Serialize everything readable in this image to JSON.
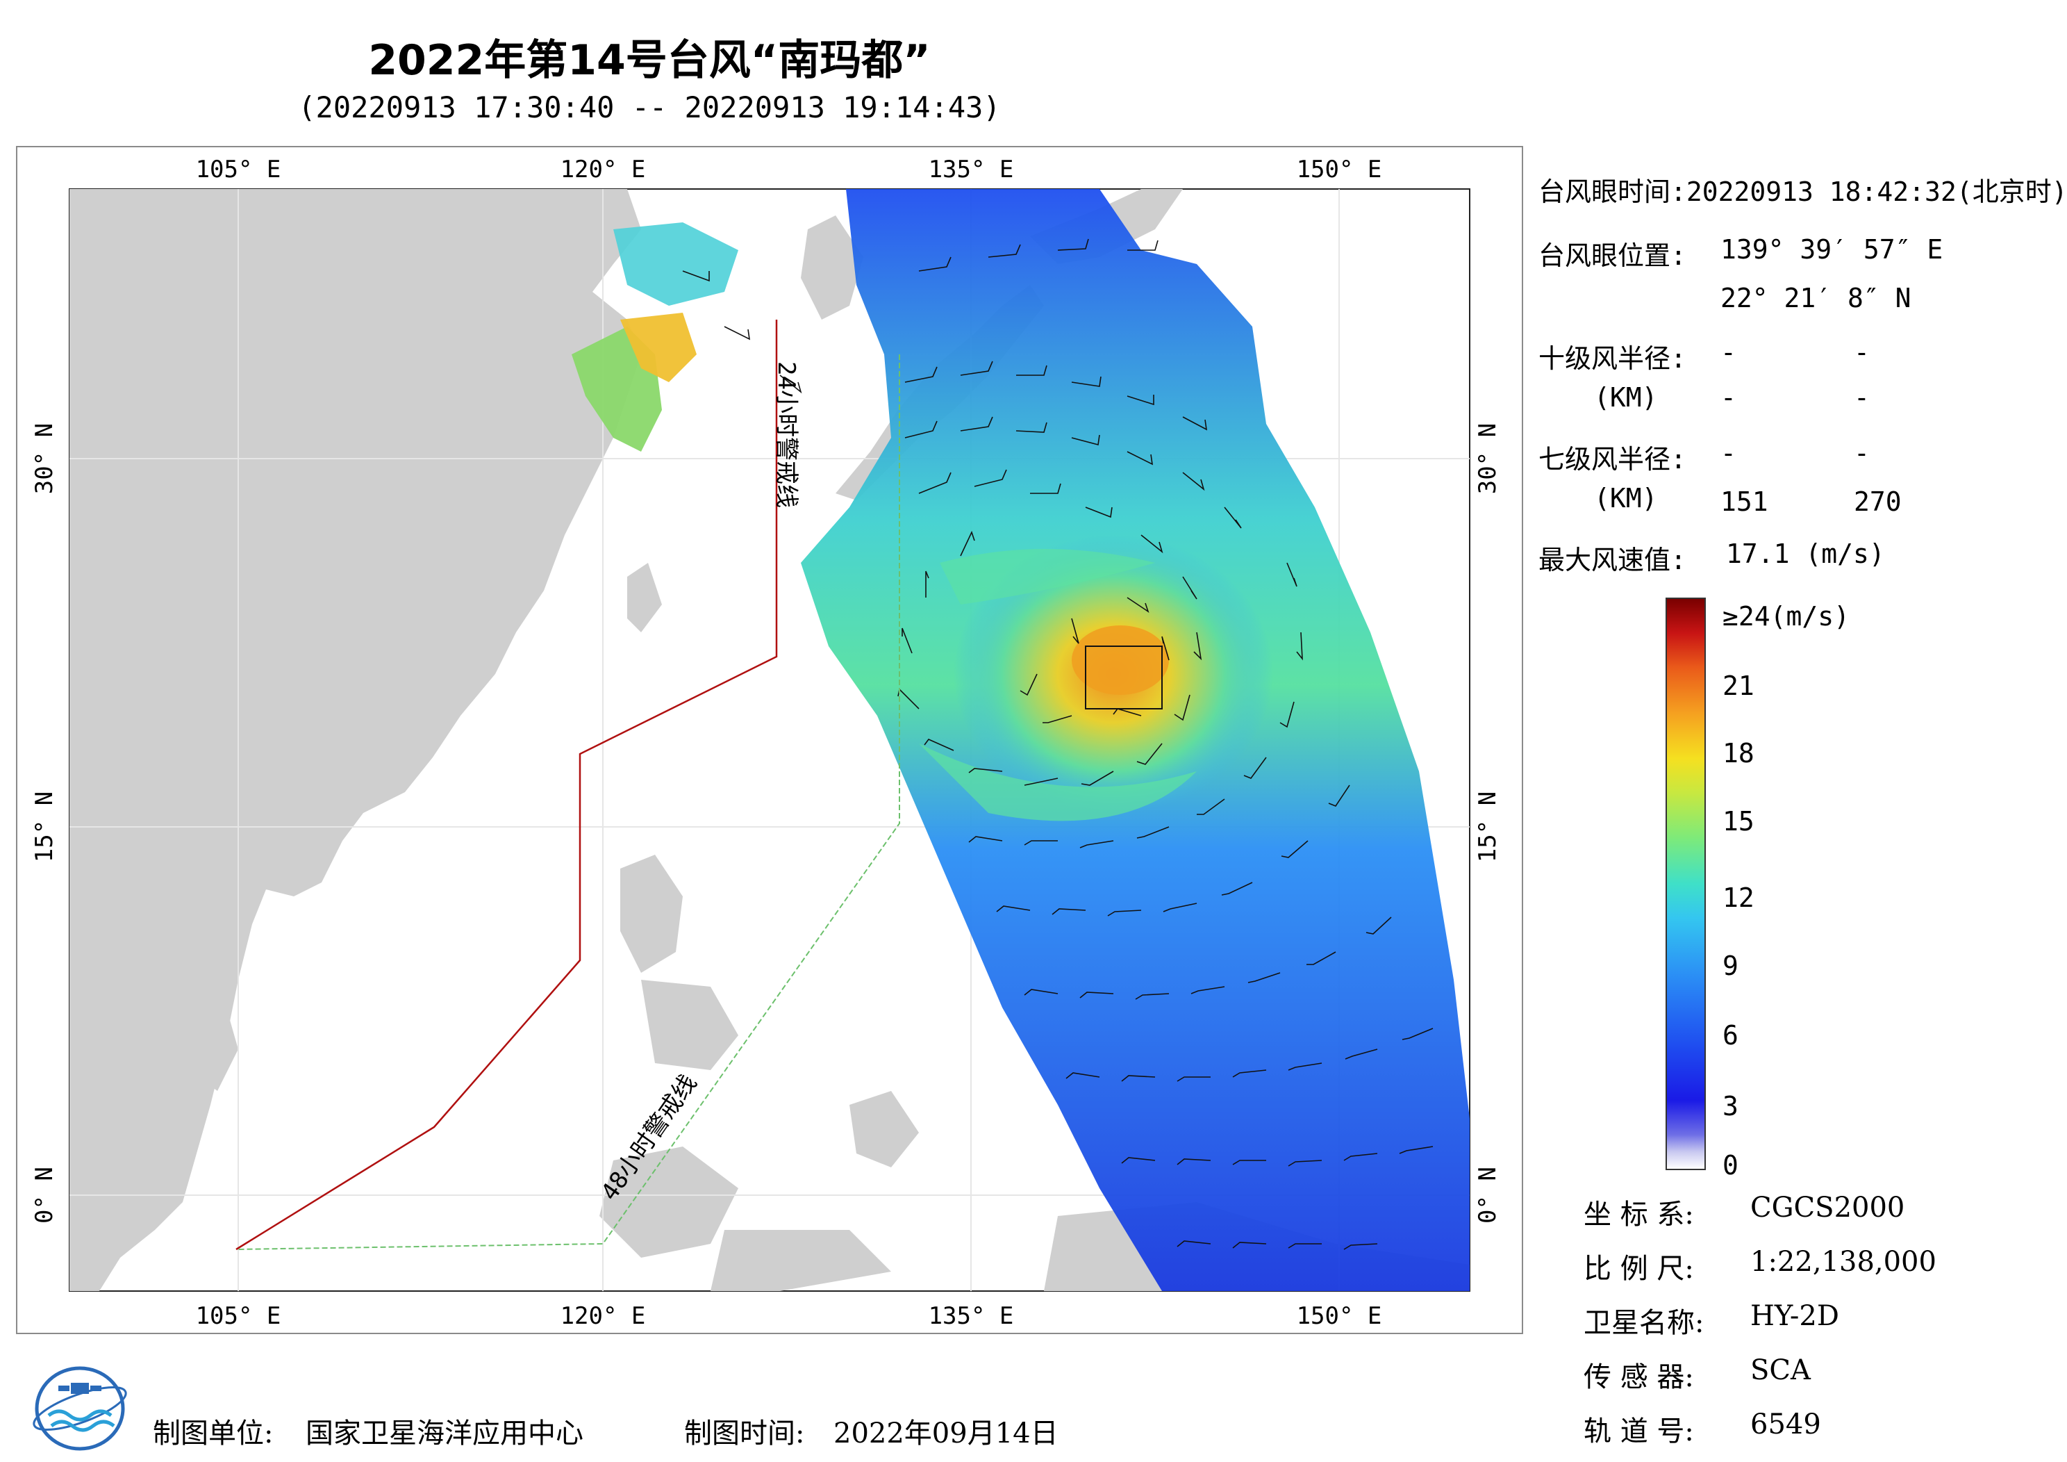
{
  "title": "2022年第14号台风“南玛都”",
  "subtitle": "(20220913 17:30:40 -- 20220913 19:14:43)",
  "map": {
    "lon_ticks": [
      "105° E",
      "120° E",
      "135° E",
      "150° E"
    ],
    "lat_ticks_left": [
      "30° N",
      "15° N",
      "0° N"
    ],
    "lat_ticks_right": [
      "30° N",
      "15° N",
      "0° N"
    ],
    "line_24h": "24小时警戒线",
    "line_48h": "48小时警戒线",
    "colors": {
      "land": "#cfcfcf",
      "sea": "#ffffff",
      "line_24h": "#b01010",
      "line_48h": "#6cc06c"
    }
  },
  "info": {
    "eye_time_label": "台风眼时间:",
    "eye_time_value": "20220913 18:42:32(北京时)",
    "eye_pos_label": "台风眼位置:",
    "eye_lon": "139° 39′ 57″ E",
    "eye_lat": "22° 21′ 8″ N",
    "r10_label": "十级风半径:",
    "r10_unit": "(KM)",
    "r10_values": [
      "-",
      "-",
      "-",
      "-"
    ],
    "r7_label": "七级风半径:",
    "r7_unit": "(KM)",
    "r7_values": [
      "-",
      "-",
      "151",
      "270"
    ],
    "max_wind_label": "最大风速值:",
    "max_wind_value": "17.1 (m/s)"
  },
  "legend": {
    "labels": [
      "≥24(m/s)",
      "21",
      "18",
      "15",
      "12",
      "9",
      "6",
      "3",
      "0"
    ]
  },
  "meta": {
    "crs_label": "坐 标 系:",
    "crs_value": "CGCS2000",
    "scale_label": "比 例 尺:",
    "scale_value": "1:22,138,000",
    "satellite_label": "卫星名称:",
    "satellite_value": "HY-2D",
    "sensor_label": "传 感 器:",
    "sensor_value": "SCA",
    "orbit_label": "轨 道 号:",
    "orbit_value": "6549"
  },
  "footer": {
    "unit_label": "制图单位:",
    "unit_value": "国家卫星海洋应用中心",
    "time_label": "制图时间:",
    "time_value": "2022年09月14日",
    "logo": "nsoas-logo"
  }
}
